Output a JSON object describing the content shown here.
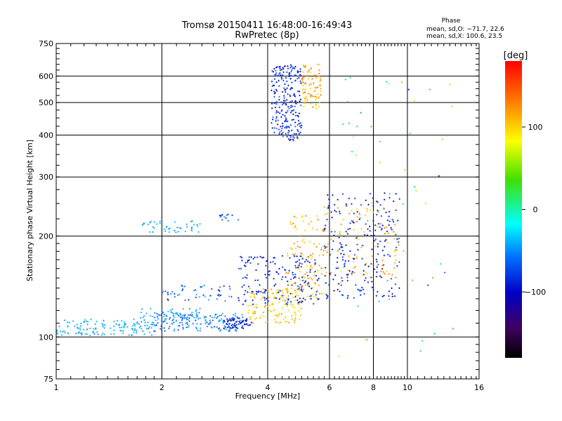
{
  "chart_data": {
    "type": "scatter",
    "title": "Tromsø 20150411 16:48:00-16:49:43",
    "subtitle": "RwPretec (8p)",
    "phase_heading": "Phase",
    "phase_stats": [
      "mean, sd,O: −71.7, 22.6",
      "mean, sd,X: 100.6, 23.5"
    ],
    "xlabel": "Frequency [MHz]",
    "ylabel": "Stationary phase Virtual Height [km]",
    "x_scale": "log",
    "y_scale": "log",
    "xlim": [
      1,
      16
    ],
    "ylim": [
      75,
      750
    ],
    "x_ticks": [
      1,
      2,
      4,
      6,
      8,
      10,
      16
    ],
    "x_tick_labels": [
      "1",
      "2",
      "4",
      "6",
      "8",
      "10",
      "16"
    ],
    "y_ticks": [
      75,
      100,
      200,
      300,
      400,
      500,
      600,
      750
    ],
    "y_tick_labels": [
      "75",
      "100",
      "200",
      "300",
      "400",
      "500",
      "600",
      "750"
    ],
    "grid": true,
    "colorbar": {
      "label": "[deg]",
      "range": [
        -180,
        180
      ],
      "ticks": [
        100,
        0,
        -100
      ],
      "tick_labels": [
        "100",
        "0",
        "−100"
      ],
      "colors": [
        "#ff0000",
        "#ff8000",
        "#ffff00",
        "#00e000",
        "#00ffff",
        "#0060ff",
        "#0000c0",
        "#500060",
        "#000000"
      ]
    },
    "clusters": [
      {
        "f_range": [
          1.0,
          1.9
        ],
        "h_range": [
          101,
          113
        ],
        "n": 140,
        "phase_range": [
          -75,
          -45
        ]
      },
      {
        "f_range": [
          1.9,
          3.4
        ],
        "h_range": [
          104,
          118
        ],
        "n": 160,
        "phase_range": [
          -95,
          -55
        ]
      },
      {
        "f_range": [
          1.7,
          2.6
        ],
        "h_range": [
          112,
          122
        ],
        "n": 50,
        "phase_range": [
          -80,
          -55
        ]
      },
      {
        "f_range": [
          2.0,
          3.2
        ],
        "h_range": [
          128,
          143
        ],
        "n": 50,
        "phase_range": [
          -110,
          -60
        ]
      },
      {
        "f_range": [
          1.75,
          2.6
        ],
        "h_range": [
          205,
          222
        ],
        "n": 45,
        "phase_range": [
          -75,
          -50
        ]
      },
      {
        "f_range": [
          2.9,
          3.3
        ],
        "h_range": [
          222,
          232
        ],
        "n": 12,
        "phase_range": [
          -115,
          -70
        ]
      },
      {
        "f_range": [
          3.0,
          3.6
        ],
        "h_range": [
          106,
          114
        ],
        "n": 60,
        "phase_range": [
          -125,
          -100
        ]
      },
      {
        "f_range": [
          3.5,
          5.0
        ],
        "h_range": [
          110,
          140
        ],
        "n": 130,
        "phase_range": [
          70,
          130
        ]
      },
      {
        "f_range": [
          3.3,
          5.6
        ],
        "h_range": [
          125,
          175
        ],
        "n": 180,
        "phase_range": [
          -130,
          -90
        ]
      },
      {
        "f_range": [
          4.1,
          5.0
        ],
        "h_range": [
          385,
          650
        ],
        "n": 240,
        "phase_range": [
          -130,
          -80
        ]
      },
      {
        "f_range": [
          5.0,
          5.7
        ],
        "h_range": [
          480,
          650
        ],
        "n": 80,
        "phase_range": [
          80,
          140
        ]
      },
      {
        "f_range": [
          4.5,
          5.8
        ],
        "h_range": [
          130,
          230
        ],
        "n": 110,
        "phase_range": [
          70,
          140
        ]
      },
      {
        "f_range": [
          5.8,
          9.5
        ],
        "h_range": [
          130,
          270
        ],
        "n": 220,
        "phase_range": [
          -130,
          -90
        ]
      },
      {
        "f_range": [
          5.8,
          9.5
        ],
        "h_range": [
          150,
          250
        ],
        "n": 90,
        "phase_range": [
          70,
          140
        ]
      },
      {
        "f_range": [
          6.3,
          13.5
        ],
        "h_range": [
          80,
          620
        ],
        "n": 60,
        "phase_range": [
          -120,
          140
        ]
      }
    ]
  }
}
